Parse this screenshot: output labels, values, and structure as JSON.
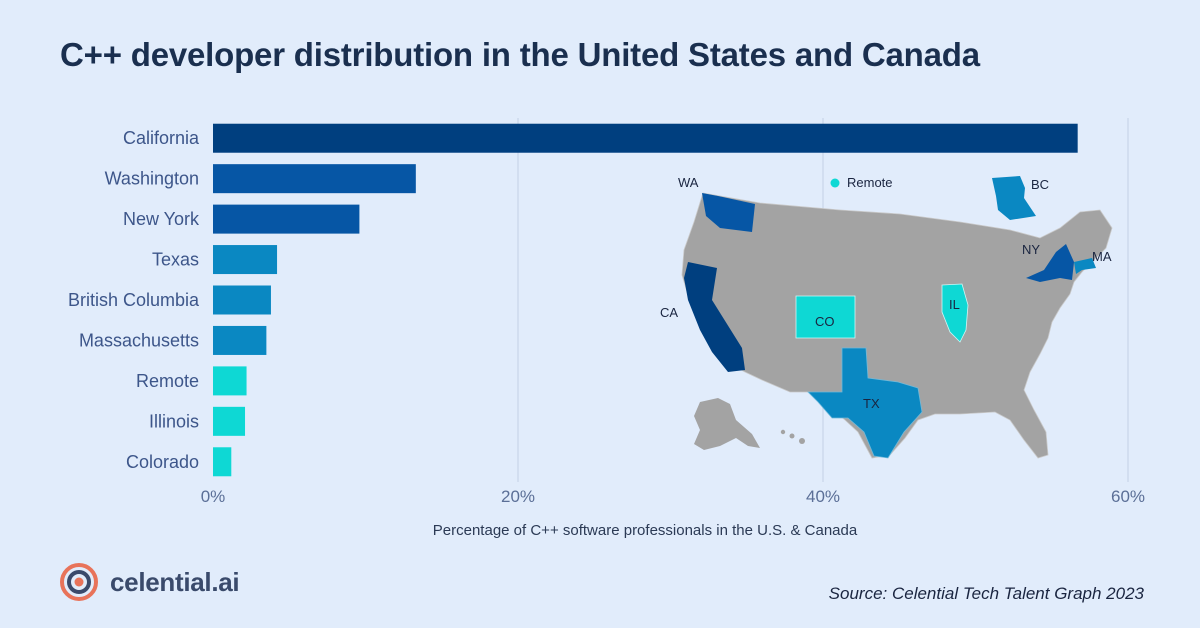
{
  "title": "C++ developer distribution in the United States and Canada",
  "brand": {
    "name": "celential.ai",
    "logo_icon": "concentric-circles-logo"
  },
  "source": "Source: Celential Tech Talent Graph 2023",
  "colors": {
    "background": "#e1ecfb",
    "dark_blue": "#003f7f",
    "mid_blue": "#0656a5",
    "light_blue": "#0a88c2",
    "cyan": "#0ed8d4",
    "map_gray": "#a3a3a3",
    "logo_orange": "#e8735a",
    "logo_navy": "#3a4a6b"
  },
  "chart_data": {
    "type": "bar",
    "orientation": "horizontal",
    "categories": [
      "California",
      "Washington",
      "New York",
      "Texas",
      "British Columbia",
      "Massachusetts",
      "Remote",
      "Illinois",
      "Colorado"
    ],
    "values": [
      56.7,
      13.3,
      9.6,
      4.2,
      3.8,
      3.5,
      2.2,
      2.1,
      1.2
    ],
    "bar_colors": [
      "#003f7f",
      "#0656a5",
      "#0656a5",
      "#0a88c2",
      "#0a88c2",
      "#0a88c2",
      "#0ed8d4",
      "#0ed8d4",
      "#0ed8d4"
    ],
    "xlabel": "Percentage of C++ software professionals in the U.S. & Canada",
    "ylabel": "",
    "xlim": [
      0,
      60
    ],
    "xticks": [
      0,
      20,
      40,
      60
    ],
    "xtick_labels": [
      "0%",
      "20%",
      "40%",
      "60%"
    ],
    "grid": "vertical"
  },
  "map_inset": {
    "labels": {
      "wa": "WA",
      "bc": "BC",
      "ny": "NY",
      "ma": "MA",
      "ca": "CA",
      "co": "CO",
      "il": "IL",
      "tx": "TX"
    },
    "legend": {
      "label": "Remote",
      "color": "#0ed8d4"
    }
  }
}
